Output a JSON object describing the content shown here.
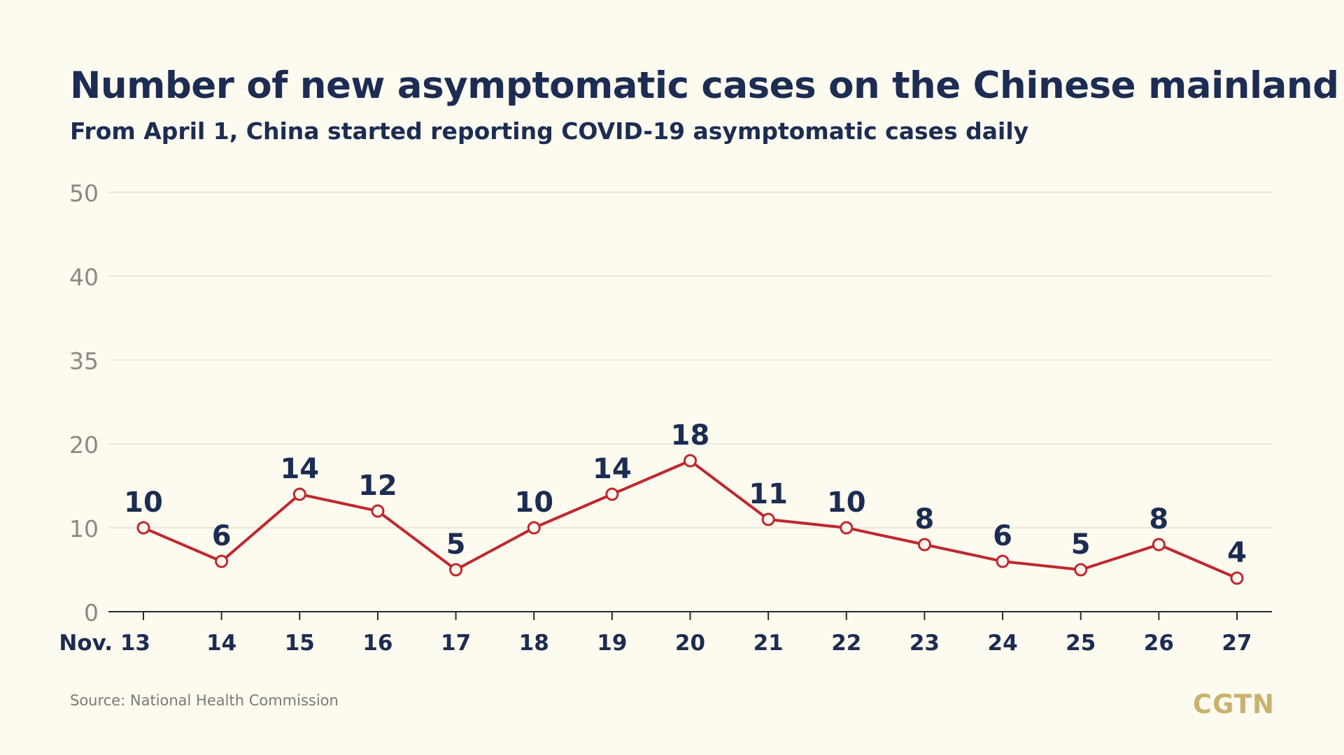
{
  "header": {
    "title": "Number of new asymptomatic cases on the Chinese mainland",
    "subtitle": "From April 1, China started reporting COVID-19 asymptomatic cases daily"
  },
  "footer": {
    "source": "Source: National Health Commission",
    "logo": "CGTN"
  },
  "colors": {
    "line": "#c0272d",
    "marker_fill": "#fdfaf0",
    "title": "#1c2c52",
    "tick_text": "#8a8a82",
    "grid": "#e6e2d4",
    "axis": "#2b2b2b",
    "logo": "#c9b26e"
  },
  "chart_data": {
    "type": "line",
    "title": "Number of new asymptomatic cases on the Chinese mainland",
    "subtitle": "From April 1, China started reporting COVID-19 asymptomatic cases daily",
    "xlabel": "",
    "ylabel": "",
    "categories": [
      "Nov. 13",
      "14",
      "15",
      "16",
      "17",
      "18",
      "19",
      "20",
      "21",
      "22",
      "23",
      "24",
      "25",
      "26",
      "27"
    ],
    "y_ticks": [
      "0",
      "10",
      "20",
      "35",
      "40",
      "50"
    ],
    "grid": true,
    "series": [
      {
        "values": [
          10,
          6,
          14,
          12,
          5,
          10,
          14,
          18,
          11,
          10,
          8,
          6,
          5,
          8,
          4
        ]
      }
    ]
  }
}
